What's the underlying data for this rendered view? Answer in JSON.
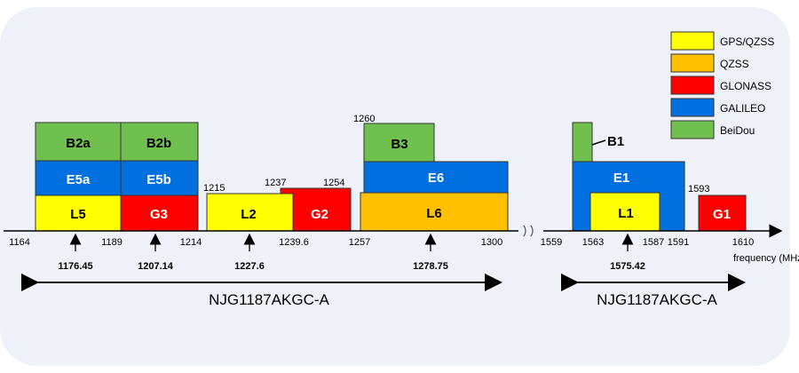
{
  "legend": [
    {
      "label": "GPS/QZSS",
      "color": "#ffff00"
    },
    {
      "label": "QZSS",
      "color": "#ffc000"
    },
    {
      "label": "GLONASS",
      "color": "#ff0000"
    },
    {
      "label": "GALILEO",
      "color": "#0070e0"
    },
    {
      "label": "BeiDou",
      "color": "#70c050"
    }
  ],
  "axis": {
    "label": "frequency (MHz)",
    "ticks": [
      "1164",
      "1189",
      "1214",
      "1239.6",
      "1257",
      "1300",
      "1559",
      "1563",
      "1587",
      "1591",
      "1610"
    ],
    "break_symbol": "≈"
  },
  "bands": [
    {
      "name": "L5",
      "system": "GPS/QZSS"
    },
    {
      "name": "G3",
      "system": "GLONASS"
    },
    {
      "name": "E5a",
      "system": "GALILEO"
    },
    {
      "name": "E5b",
      "system": "GALILEO"
    },
    {
      "name": "B2a",
      "system": "BeiDou"
    },
    {
      "name": "B2b",
      "system": "BeiDou"
    },
    {
      "name": "L2",
      "system": "GPS/QZSS"
    },
    {
      "name": "G2",
      "system": "GLONASS"
    },
    {
      "name": "L6",
      "system": "QZSS"
    },
    {
      "name": "E6",
      "system": "GALILEO"
    },
    {
      "name": "B3",
      "system": "BeiDou"
    },
    {
      "name": "E1",
      "system": "GALILEO"
    },
    {
      "name": "L1",
      "system": "GPS/QZSS"
    },
    {
      "name": "B1",
      "system": "BeiDou"
    },
    {
      "name": "G1",
      "system": "GLONASS"
    }
  ],
  "edge_labels": [
    "1215",
    "1237",
    "1254",
    "1260",
    "1593"
  ],
  "center_freqs": [
    "1176.45",
    "1207.14",
    "1227.6",
    "1278.75",
    "1575.42"
  ],
  "products": [
    "NJG1187AKGC-A",
    "NJG1187AKGC-A"
  ],
  "colors": {
    "axis": "#000000",
    "panel": "#eef1f7"
  }
}
